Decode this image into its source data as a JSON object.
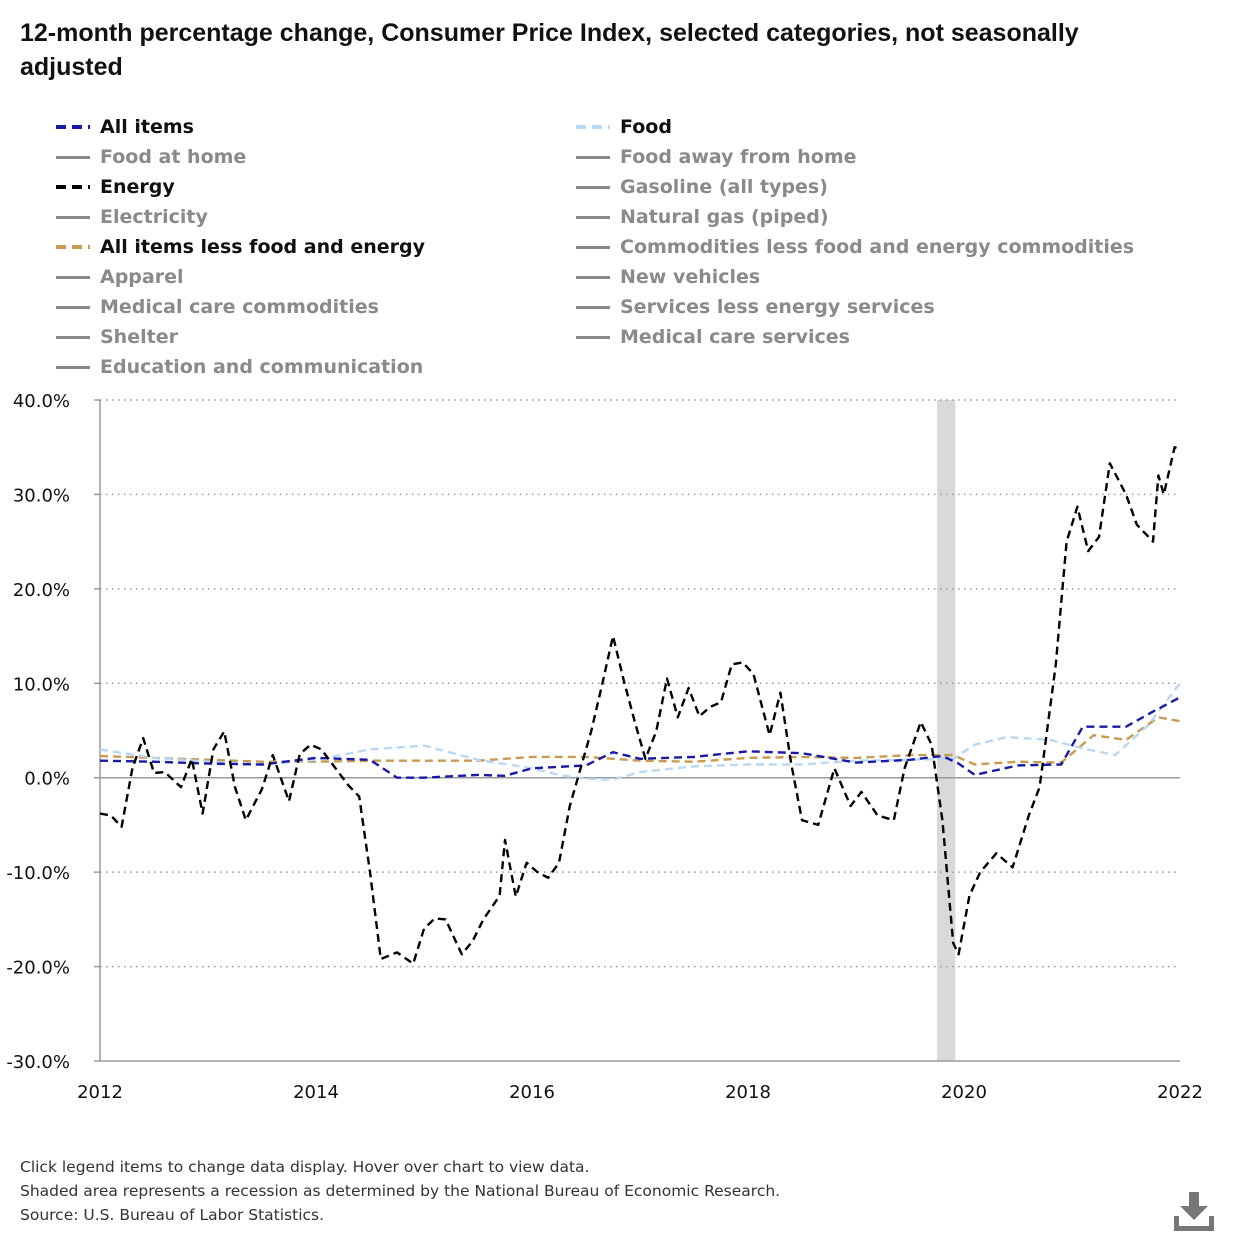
{
  "title": "12-month percentage change, Consumer Price Index, selected categories, not seasonally adjusted",
  "legend": [
    {
      "label": "All items",
      "color": "#1a1aa6",
      "dash": true,
      "active": true
    },
    {
      "label": "Food",
      "color": "#b8d8f5",
      "dash": true,
      "active": true
    },
    {
      "label": "Food at home",
      "color": "#888888",
      "dash": false,
      "active": false
    },
    {
      "label": "Food away from home",
      "color": "#888888",
      "dash": false,
      "active": false
    },
    {
      "label": "Energy",
      "color": "#000000",
      "dash": true,
      "active": true
    },
    {
      "label": "Gasoline (all types)",
      "color": "#888888",
      "dash": false,
      "active": false
    },
    {
      "label": "Electricity",
      "color": "#888888",
      "dash": false,
      "active": false
    },
    {
      "label": "Natural gas (piped)",
      "color": "#888888",
      "dash": false,
      "active": false
    },
    {
      "label": "All items less food and energy",
      "color": "#c89a52",
      "dash": true,
      "active": true
    },
    {
      "label": "Commodities less food and energy commodities",
      "color": "#888888",
      "dash": false,
      "active": false
    },
    {
      "label": "Apparel",
      "color": "#888888",
      "dash": false,
      "active": false
    },
    {
      "label": "New vehicles",
      "color": "#888888",
      "dash": false,
      "active": false
    },
    {
      "label": "Medical care commodities",
      "color": "#888888",
      "dash": false,
      "active": false
    },
    {
      "label": "Services less energy services",
      "color": "#888888",
      "dash": false,
      "active": false
    },
    {
      "label": "Shelter",
      "color": "#888888",
      "dash": false,
      "active": false
    },
    {
      "label": "Medical care services",
      "color": "#888888",
      "dash": false,
      "active": false
    },
    {
      "label": "Education and communication",
      "color": "#888888",
      "dash": false,
      "active": false
    }
  ],
  "chart_data": {
    "type": "line",
    "ylim": [
      -30,
      40
    ],
    "xlim": [
      2012,
      2022
    ],
    "y_ticks": [
      40,
      30,
      20,
      10,
      0,
      -10,
      -20,
      -30
    ],
    "y_tick_labels": [
      "40.0%",
      "30.0%",
      "20.0%",
      "10.0%",
      "0.0%",
      "-10.0%",
      "-20.0%",
      "-30.0%"
    ],
    "x_ticks": [
      2012,
      2014,
      2016,
      2018,
      2020,
      2022
    ],
    "x_tick_labels": [
      "2012",
      "2014",
      "2016",
      "2018",
      "2020",
      "2022"
    ],
    "grid": "horizontal dotted",
    "recession": [
      2019.75,
      2019.92
    ],
    "series": [
      {
        "name": "All items less food and energy",
        "color": "#c89a52",
        "x": [
          2012,
          2012.5,
          2013,
          2013.5,
          2014,
          2014.5,
          2015,
          2015.5,
          2016,
          2016.5,
          2017,
          2017.5,
          2018,
          2018.5,
          2019,
          2019.5,
          2019.9,
          2020.1,
          2020.5,
          2020.9,
          2021.2,
          2021.5,
          2021.8,
          2022
        ],
        "y": [
          2.3,
          2.1,
          1.9,
          1.7,
          1.7,
          1.8,
          1.8,
          1.8,
          2.2,
          2.2,
          1.8,
          1.7,
          2.1,
          2.2,
          2.1,
          2.4,
          2.4,
          1.4,
          1.7,
          1.6,
          4.5,
          4.0,
          6.4,
          6.0
        ]
      },
      {
        "name": "Food",
        "color": "#b8d8f5",
        "x": [
          2012,
          2012.5,
          2013,
          2013.5,
          2014,
          2014.5,
          2015,
          2015.5,
          2016,
          2016.25,
          2016.5,
          2016.75,
          2017,
          2017.5,
          2018,
          2018.5,
          2019,
          2019.5,
          2019.9,
          2020.1,
          2020.4,
          2020.8,
          2021.1,
          2021.4,
          2021.7,
          2022
        ],
        "y": [
          3.0,
          2.1,
          1.7,
          1.4,
          1.9,
          3.0,
          3.4,
          1.9,
          1.0,
          0.3,
          -0.1,
          -0.2,
          0.6,
          1.2,
          1.4,
          1.4,
          1.8,
          1.9,
          2.0,
          3.5,
          4.3,
          4.0,
          3.1,
          2.4,
          5.5,
          10.0
        ]
      },
      {
        "name": "All items",
        "color": "#1a1aa6",
        "x": [
          2012,
          2012.5,
          2013,
          2013.5,
          2014,
          2014.5,
          2014.75,
          2015,
          2015.5,
          2015.75,
          2016,
          2016.5,
          2016.75,
          2017,
          2017.5,
          2018,
          2018.5,
          2019,
          2019.5,
          2019.8,
          2019.95,
          2020.1,
          2020.5,
          2020.9,
          2021.1,
          2021.5,
          2021.75,
          2022
        ],
        "y": [
          1.8,
          1.7,
          1.5,
          1.4,
          2.1,
          1.9,
          0.0,
          0.0,
          0.3,
          0.2,
          1.0,
          1.3,
          2.7,
          2.0,
          2.2,
          2.8,
          2.6,
          1.6,
          1.9,
          2.3,
          1.5,
          0.3,
          1.3,
          1.4,
          5.4,
          5.4,
          7.0,
          8.5
        ]
      },
      {
        "name": "Energy",
        "color": "#000000",
        "x": [
          2012,
          2012.1,
          2012.2,
          2012.3,
          2012.4,
          2012.5,
          2012.6,
          2012.75,
          2012.85,
          2012.95,
          2013.05,
          2013.15,
          2013.25,
          2013.35,
          2013.5,
          2013.6,
          2013.75,
          2013.85,
          2013.95,
          2014.05,
          2014.2,
          2014.3,
          2014.4,
          2014.5,
          2014.6,
          2014.75,
          2014.9,
          2015.0,
          2015.1,
          2015.2,
          2015.35,
          2015.45,
          2015.55,
          2015.7,
          2015.75,
          2015.85,
          2015.95,
          2016.05,
          2016.15,
          2016.25,
          2016.35,
          2016.45,
          2016.55,
          2016.65,
          2016.75,
          2016.85,
          2016.95,
          2017.05,
          2017.15,
          2017.25,
          2017.35,
          2017.45,
          2017.55,
          2017.65,
          2017.75,
          2017.85,
          2017.95,
          2018.05,
          2018.2,
          2018.3,
          2018.4,
          2018.5,
          2018.65,
          2018.8,
          2018.95,
          2019.05,
          2019.2,
          2019.35,
          2019.45,
          2019.6,
          2019.7,
          2019.8,
          2019.9,
          2019.95,
          2020.05,
          2020.15,
          2020.3,
          2020.45,
          2020.6,
          2020.7,
          2020.85,
          2020.95,
          2021.05,
          2021.15,
          2021.25,
          2021.35,
          2021.5,
          2021.6,
          2021.75,
          2021.8,
          2021.85,
          2021.95,
          2022
        ],
        "y": [
          -3.8,
          -4.0,
          -5.2,
          1.0,
          4.2,
          0.5,
          0.6,
          -1.0,
          2.0,
          -3.8,
          3.0,
          4.9,
          -1.0,
          -4.5,
          -1.2,
          2.4,
          -2.5,
          2.5,
          3.5,
          3.0,
          0.7,
          -0.8,
          -2.0,
          -10.0,
          -19.2,
          -18.5,
          -19.7,
          -16.0,
          -14.9,
          -15.0,
          -18.7,
          -17.3,
          -15.0,
          -12.5,
          -6.6,
          -12.6,
          -9.0,
          -10.0,
          -10.6,
          -9.0,
          -3.0,
          1.0,
          5.0,
          9.9,
          15.0,
          10.3,
          6.0,
          2.0,
          4.9,
          10.5,
          6.4,
          9.5,
          6.5,
          7.5,
          8.0,
          12.0,
          12.2,
          11.0,
          4.5,
          9.0,
          1.5,
          -4.5,
          -5.0,
          1.0,
          -3.0,
          -1.5,
          -4.0,
          -4.5,
          1.0,
          5.9,
          3.5,
          -4.5,
          -17.5,
          -18.7,
          -12.5,
          -10.0,
          -8.0,
          -9.5,
          -4.0,
          -1.0,
          12.0,
          25.0,
          28.7,
          24.0,
          25.5,
          33.3,
          30.0,
          26.8,
          25.0,
          32.0,
          30.0,
          35.0,
          34.8
        ]
      }
    ]
  },
  "footnotes": [
    "Click legend items to change data display. Hover over chart to view data.",
    "Shaded area represents a recession as determined by the National Bureau of Economic Research.",
    "Source: U.S. Bureau of Labor Statistics."
  ],
  "download_icon": "download-icon"
}
